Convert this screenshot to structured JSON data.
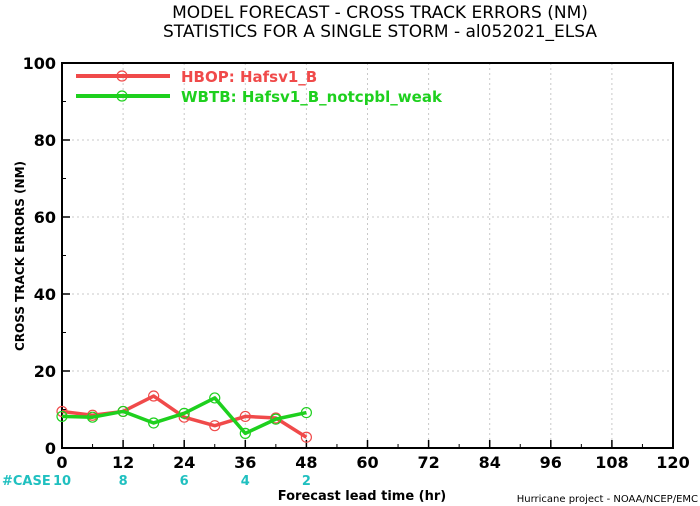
{
  "chart_data": {
    "type": "line",
    "title": "MODEL FORECAST - CROSS TRACK ERRORS (NM)",
    "subtitle": "STATISTICS FOR A SINGLE STORM - al052021_ELSA",
    "xlabel": "Forecast lead time (hr)",
    "ylabel": "CROSS TRACK ERRORS (NM)",
    "xlim": [
      0,
      120
    ],
    "ylim": [
      0,
      100
    ],
    "x_ticks": [
      0,
      12,
      24,
      36,
      48,
      60,
      72,
      84,
      96,
      108,
      120
    ],
    "y_ticks": [
      0,
      20,
      40,
      60,
      80,
      100
    ],
    "grid": true,
    "legend_position": "top-left",
    "series": [
      {
        "name": "HBOP: Hafsv1_B",
        "color": "#f04a4a",
        "x": [
          0,
          6,
          12,
          18,
          24,
          30,
          36,
          42,
          48
        ],
        "y": [
          9.5,
          8.5,
          9.5,
          13.5,
          8.0,
          5.8,
          8.2,
          7.8,
          2.8
        ]
      },
      {
        "name": "WBTB: Hafsv1_B_notcpbl_weak",
        "color": "#1ed01e",
        "x": [
          0,
          6,
          12,
          18,
          24,
          30,
          36,
          42,
          48
        ],
        "y": [
          8.2,
          8.0,
          9.5,
          6.5,
          9.0,
          13.0,
          3.8,
          7.5,
          9.2
        ]
      }
    ],
    "case_label": "#CASE",
    "case_color": "#20c0c0",
    "case_counts": [
      {
        "x": 0,
        "count": "10"
      },
      {
        "x": 12,
        "count": "8"
      },
      {
        "x": 24,
        "count": "6"
      },
      {
        "x": 36,
        "count": "4"
      },
      {
        "x": 48,
        "count": "2"
      }
    ],
    "credit": "Hurricane project - NOAA/NCEP/EMC"
  }
}
